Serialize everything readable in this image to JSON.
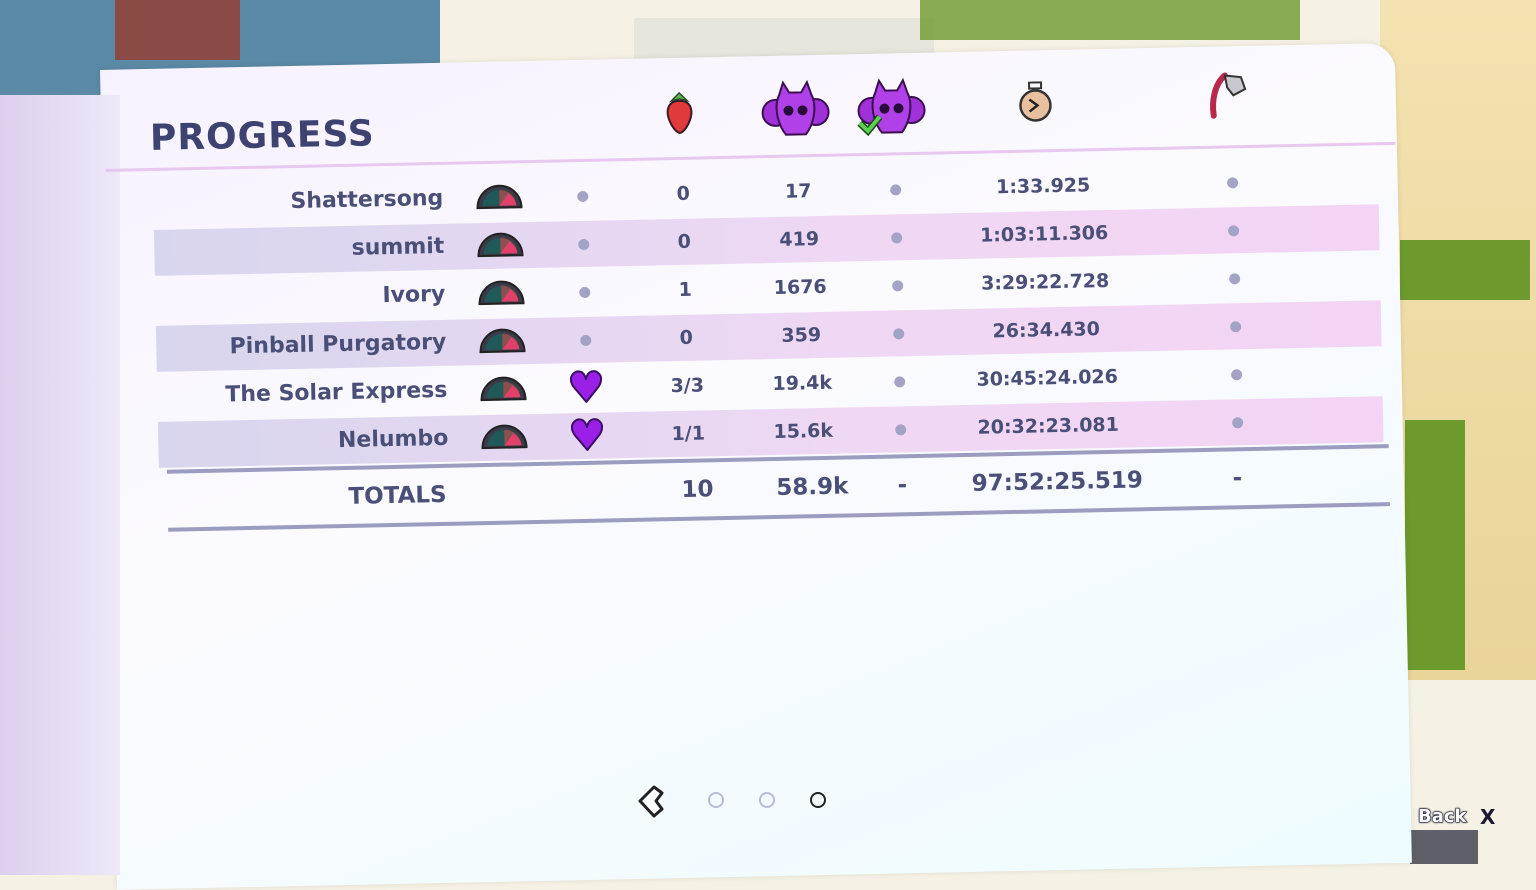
{
  "title": "PROGRESS",
  "columns": [
    {
      "icon": "strawberry-icon"
    },
    {
      "icon": "death-skull-icon"
    },
    {
      "icon": "deathless-skull-check-icon"
    },
    {
      "icon": "stopwatch-icon"
    },
    {
      "icon": "golden-flag-icon"
    }
  ],
  "rows": [
    {
      "name": "Shattersong",
      "heart": false,
      "strawberries": "0",
      "deaths": "17",
      "time": "1:33.925"
    },
    {
      "name": "summit",
      "heart": false,
      "strawberries": "0",
      "deaths": "419",
      "time": "1:03:11.306"
    },
    {
      "name": "Ivory",
      "heart": false,
      "strawberries": "1",
      "deaths": "1676",
      "time": "3:29:22.728"
    },
    {
      "name": "Pinball Purgatory",
      "heart": false,
      "strawberries": "0",
      "deaths": "359",
      "time": "26:34.430"
    },
    {
      "name": "The Solar Express",
      "heart": true,
      "strawberries": "3/3",
      "deaths": "19.4k",
      "time": "30:45:24.026"
    },
    {
      "name": "Nelumbo",
      "heart": true,
      "strawberries": "1/1",
      "deaths": "15.6k",
      "time": "20:32:23.081"
    }
  ],
  "totals": {
    "label": "TOTALS",
    "strawberries": "10",
    "deaths": "58.9k",
    "deathless": "-",
    "time": "97:52:25.519",
    "golden": "-"
  },
  "pagination": {
    "pages": 3,
    "current": 3
  },
  "back": {
    "label": "Back",
    "key": "X"
  },
  "colors": {
    "heart": "#9a20e8",
    "text": "#4a4f78",
    "accent": "#e8c8ee"
  }
}
